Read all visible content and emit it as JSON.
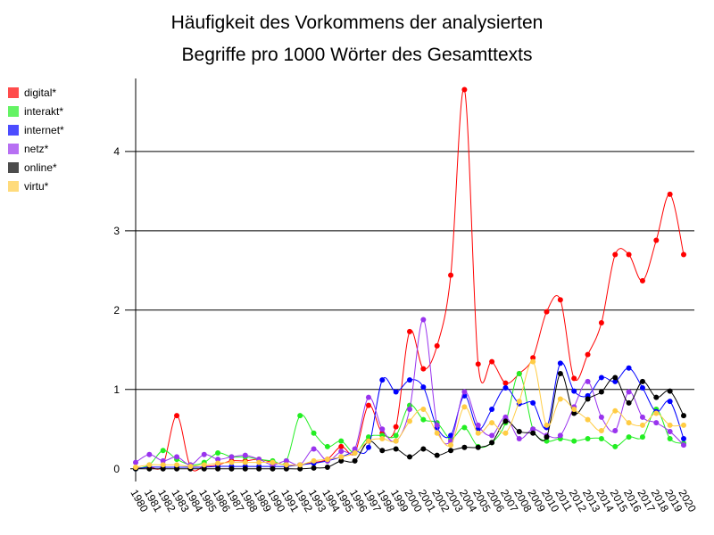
{
  "chart_data": {
    "type": "line",
    "title": [
      "Häufigkeit des Vorkommens der analysierten",
      "Begriffe pro 1000 Wörter des Gesamttexts"
    ],
    "categories": [
      "1980",
      "1981",
      "1982",
      "1983",
      "1984",
      "1985",
      "1986",
      "1987",
      "1988",
      "1989",
      "1990",
      "1991",
      "1992",
      "1993",
      "1994",
      "1995",
      "1996",
      "1997",
      "1998",
      "1999",
      "2000",
      "2001",
      "2002",
      "2003",
      "2004",
      "2005",
      "2006",
      "2007",
      "2008",
      "2009",
      "2010",
      "2011",
      "2012",
      "2013",
      "2014",
      "2015",
      "2016",
      "2017",
      "2018",
      "2019",
      "2020"
    ],
    "ylim": [
      -0.16,
      4.92
    ],
    "yticks": [
      0,
      1,
      2,
      3,
      4
    ],
    "grid": true,
    "legend": "left",
    "series": [
      {
        "name": "digital*",
        "color": "#ff0000",
        "values": [
          0.01,
          0.02,
          0.05,
          0.67,
          0.02,
          0.03,
          0.05,
          0.1,
          0.1,
          0.12,
          0.08,
          0.05,
          0.05,
          0.08,
          0.12,
          0.28,
          0.2,
          0.8,
          0.45,
          0.53,
          1.73,
          1.26,
          1.55,
          2.44,
          4.78,
          1.32,
          1.35,
          1.08,
          1.2,
          1.4,
          1.98,
          2.13,
          1.14,
          1.44,
          1.84,
          2.7,
          2.7,
          2.37,
          2.88,
          3.46,
          2.7
        ]
      },
      {
        "name": "interakt*",
        "color": "#22ee22",
        "values": [
          0,
          0.05,
          0.23,
          0.12,
          0.05,
          0.08,
          0.2,
          0.15,
          0.15,
          0.12,
          0.1,
          0.1,
          0.67,
          0.45,
          0.28,
          0.35,
          0.2,
          0.4,
          0.42,
          0.42,
          0.8,
          0.62,
          0.58,
          0.38,
          0.52,
          0.28,
          0.33,
          0.58,
          1.2,
          0.5,
          0.35,
          0.38,
          0.35,
          0.38,
          0.38,
          0.28,
          0.4,
          0.4,
          0.75,
          0.38,
          0.32
        ]
      },
      {
        "name": "internet*",
        "color": "#0000ff",
        "values": [
          0,
          0.02,
          0.02,
          0.02,
          0.02,
          0.02,
          0.03,
          0.03,
          0.03,
          0.03,
          0.03,
          0.03,
          0.05,
          0.07,
          0.1,
          0.15,
          0.22,
          0.27,
          1.12,
          0.97,
          1.12,
          1.03,
          0.52,
          0.42,
          0.92,
          0.5,
          0.75,
          1.02,
          0.82,
          0.83,
          0.52,
          1.33,
          0.98,
          0.92,
          1.15,
          1.1,
          1.27,
          1.02,
          0.72,
          0.85,
          0.38
        ]
      },
      {
        "name": "netz*",
        "color": "#9933ee",
        "values": [
          0.08,
          0.18,
          0.1,
          0.15,
          0.05,
          0.18,
          0.12,
          0.15,
          0.17,
          0.12,
          0.05,
          0.1,
          0.05,
          0.25,
          0.1,
          0.22,
          0.25,
          0.9,
          0.5,
          0.35,
          0.75,
          1.88,
          0.55,
          0.35,
          0.97,
          0.55,
          0.42,
          0.65,
          0.38,
          0.5,
          0.42,
          0.42,
          0.78,
          1.1,
          0.65,
          0.48,
          0.97,
          0.65,
          0.58,
          0.47,
          0.3
        ]
      },
      {
        "name": "online*",
        "color": "#000000",
        "values": [
          0,
          0,
          0,
          0,
          0,
          0,
          0,
          0,
          0,
          0,
          0,
          0,
          0,
          0.01,
          0.02,
          0.1,
          0.1,
          0.35,
          0.23,
          0.25,
          0.15,
          0.25,
          0.17,
          0.23,
          0.27,
          0.27,
          0.33,
          0.6,
          0.47,
          0.45,
          0.4,
          1.2,
          0.7,
          0.88,
          0.97,
          1.15,
          0.83,
          1.1,
          0.9,
          0.98,
          0.67
        ]
      },
      {
        "name": "virtu*",
        "color": "#ffcc44",
        "values": [
          0.02,
          0.05,
          0.05,
          0.05,
          0.03,
          0.05,
          0.07,
          0.08,
          0.08,
          0.08,
          0.08,
          0.05,
          0.05,
          0.1,
          0.12,
          0.15,
          0.2,
          0.35,
          0.38,
          0.35,
          0.6,
          0.75,
          0.45,
          0.3,
          0.78,
          0.45,
          0.58,
          0.45,
          0.85,
          1.35,
          0.55,
          0.88,
          0.75,
          0.62,
          0.48,
          0.73,
          0.58,
          0.55,
          0.7,
          0.55,
          0.55
        ]
      }
    ]
  }
}
